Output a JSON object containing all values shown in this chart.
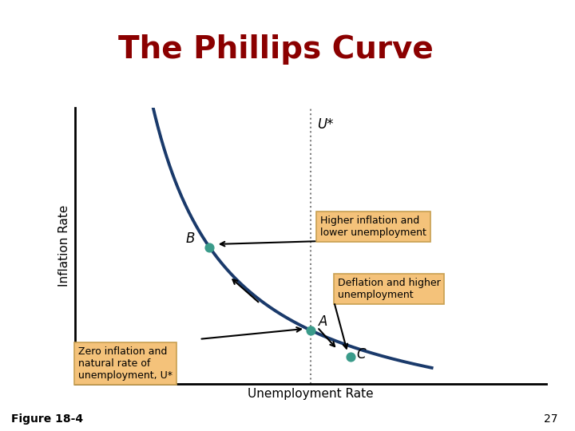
{
  "title": "The Phillips Curve",
  "title_color": "#8B0000",
  "title_fontsize": 28,
  "header_bg_color": "#8888BB",
  "main_bg_color": "#FFFFFF",
  "ylabel": "Inflation Rate",
  "xlabel": "Unemployment Rate",
  "figure_number": "Figure 18-4",
  "page_number": "27",
  "curve_color": "#1a3a6b",
  "curve_linewidth": 2.8,
  "Ustar_label": "U*",
  "dot_color": "#3A9B8A",
  "dot_size": 60,
  "box_facecolor": "#F4C27A",
  "box_edgecolor": "#C8A050",
  "annotation_fontsize": 9,
  "label_fontsize": 11,
  "Ustar_x": 5.0,
  "xlim": [
    1.5,
    8.5
  ],
  "ylim": [
    -1.8,
    7.5
  ],
  "point_A": [
    5.0,
    0.0
  ],
  "point_B": [
    3.5,
    2.8
  ],
  "point_C": [
    5.6,
    -0.9
  ]
}
